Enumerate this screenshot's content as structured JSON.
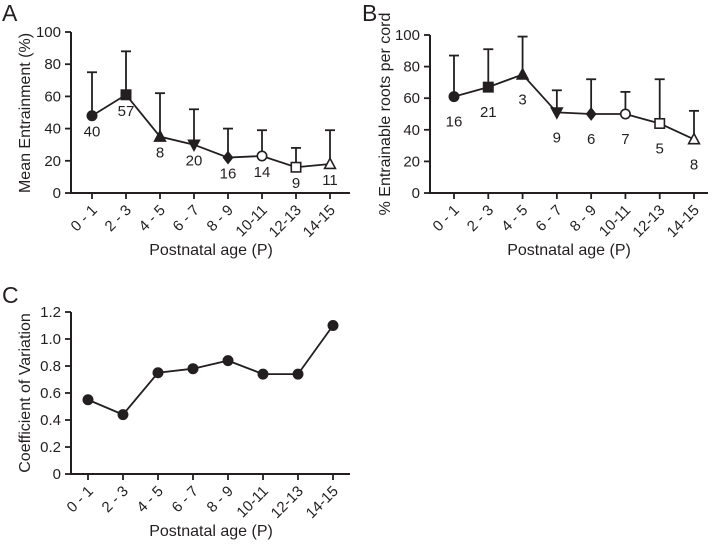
{
  "colors": {
    "ink": "#231f20",
    "background": "#ffffff",
    "open_marker_fill": "#ffffff"
  },
  "chart_data": [
    {
      "type": "line",
      "panel_label": "A",
      "title": "",
      "xlabel": "Postnatal age (P)",
      "ylabel": "Mean Entrainment (%)",
      "categories": [
        "0 - 1",
        "2 - 3",
        "4 - 5",
        "6 - 7",
        "8 - 9",
        "10-11",
        "12-13",
        "14-15"
      ],
      "ylim": [
        0,
        100
      ],
      "yticks": [
        "0",
        "20",
        "40",
        "60",
        "80",
        "100"
      ],
      "grid": false,
      "legend": false,
      "series": [
        {
          "name": "mean-entrainment",
          "values": [
            48,
            61,
            35,
            30,
            22,
            23,
            16,
            18
          ],
          "error_upper": [
            75,
            88,
            62,
            52,
            40,
            39,
            28,
            39
          ],
          "point_n_labels": [
            "40",
            "57",
            "8",
            "20",
            "16",
            "14",
            "9",
            "11"
          ],
          "markers": [
            "circle-filled",
            "square-filled",
            "triangle-up-filled",
            "triangle-down-filled",
            "diamond-filled",
            "circle-open",
            "square-open",
            "triangle-up-open"
          ]
        }
      ]
    },
    {
      "type": "line",
      "panel_label": "B",
      "title": "",
      "xlabel": "Postnatal age (P)",
      "ylabel": "% Entrainable roots per cord",
      "categories": [
        "0 - 1",
        "2 - 3",
        "4 - 5",
        "6 - 7",
        "8 - 9",
        "10-11",
        "12-13",
        "14-15"
      ],
      "ylim": [
        0,
        100
      ],
      "yticks": [
        "0",
        "20",
        "40",
        "60",
        "80",
        "100"
      ],
      "grid": false,
      "legend": false,
      "series": [
        {
          "name": "entrainable-roots",
          "values": [
            61,
            67,
            75,
            51,
            50,
            50,
            44,
            34
          ],
          "error_upper": [
            87,
            91,
            99,
            65,
            72,
            64,
            72,
            52
          ],
          "point_n_labels": [
            "16",
            "21",
            "3",
            "9",
            "6",
            "7",
            "5",
            "8"
          ],
          "markers": [
            "circle-filled",
            "square-filled",
            "triangle-up-filled",
            "triangle-down-filled",
            "diamond-filled",
            "circle-open",
            "square-open",
            "triangle-up-open"
          ]
        }
      ]
    },
    {
      "type": "line",
      "panel_label": "C",
      "title": "",
      "xlabel": "Postnatal age (P)",
      "ylabel": "Coefficient of Variation",
      "categories": [
        "0 - 1",
        "2 - 3",
        "4 - 5",
        "6 - 7",
        "8 - 9",
        "10-11",
        "12-13",
        "14-15"
      ],
      "ylim": [
        0,
        1.2
      ],
      "yticks": [
        "0",
        "0.2",
        "0.4",
        "0.6",
        "0.8",
        "1.0",
        "1.2"
      ],
      "grid": false,
      "legend": false,
      "series": [
        {
          "name": "coefficient-of-variation",
          "values": [
            0.55,
            0.44,
            0.75,
            0.78,
            0.84,
            0.74,
            0.74,
            1.1
          ],
          "error_upper": null,
          "point_n_labels": null,
          "markers": [
            "circle-filled",
            "circle-filled",
            "circle-filled",
            "circle-filled",
            "circle-filled",
            "circle-filled",
            "circle-filled",
            "circle-filled"
          ]
        }
      ]
    }
  ]
}
